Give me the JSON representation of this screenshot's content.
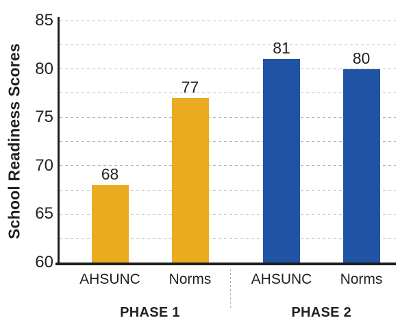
{
  "chart_data": {
    "type": "bar",
    "title": "",
    "xlabel": "",
    "ylabel": "School Readiness Scores",
    "ylim": [
      60,
      85
    ],
    "yticks": [
      60,
      65,
      70,
      75,
      80,
      85
    ],
    "gridlines": [
      62.5,
      65,
      67.5,
      70,
      72.5,
      75,
      77.5,
      80,
      82.5,
      85
    ],
    "grid": true,
    "legend_position": "none",
    "categories": [
      "AHSUNC",
      "Norms",
      "AHSUNC",
      "Norms"
    ],
    "groups": [
      {
        "label": "PHASE 1",
        "color": "#EBAB21",
        "bars": [
          {
            "category": "AHSUNC",
            "value": 68,
            "value_label": "68"
          },
          {
            "category": "Norms",
            "value": 77,
            "value_label": "77"
          }
        ]
      },
      {
        "label": "PHASE 2",
        "color": "#2153A4",
        "bars": [
          {
            "category": "AHSUNC",
            "value": 81,
            "value_label": "81"
          },
          {
            "category": "Norms",
            "value": 80,
            "value_label": "80"
          }
        ]
      }
    ]
  },
  "colors": {
    "phase1_bar": "#EBAB21",
    "phase2_bar": "#2153A4",
    "axis": "#1D1D1B",
    "text": "#231F20",
    "gridline": "#B5B5B5",
    "background": "#FFFFFF"
  }
}
